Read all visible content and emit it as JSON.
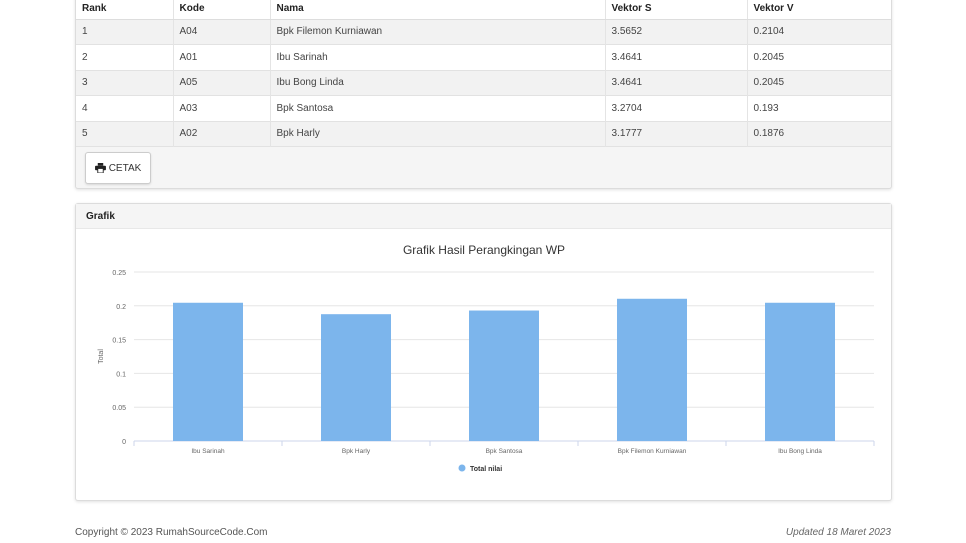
{
  "table": {
    "headers": [
      "Rank",
      "Kode",
      "Nama",
      "Vektor S",
      "Vektor V"
    ],
    "rows": [
      [
        "1",
        "A04",
        "Bpk Filemon Kurniawan",
        "3.5652",
        "0.2104"
      ],
      [
        "2",
        "A01",
        "Ibu Sarinah",
        "3.4641",
        "0.2045"
      ],
      [
        "3",
        "A05",
        "Ibu Bong Linda",
        "3.4641",
        "0.2045"
      ],
      [
        "4",
        "A03",
        "Bpk Santosa",
        "3.2704",
        "0.193"
      ],
      [
        "5",
        "A02",
        "Bpk Harly",
        "3.1777",
        "0.1876"
      ]
    ]
  },
  "print_button": {
    "label": "CETAK",
    "icon": "print-icon"
  },
  "chart_card": {
    "header": "Grafik"
  },
  "chart_data": {
    "type": "bar",
    "title": "Grafik Hasil Perangkingan WP",
    "xlabel": "",
    "ylabel": "Total",
    "categories": [
      "Ibu Sarinah",
      "Bpk Harly",
      "Bpk Santosa",
      "Bpk Filemon Kurniawan",
      "Ibu Bong Linda"
    ],
    "series": [
      {
        "name": "Total nilai",
        "values": [
          0.2045,
          0.1876,
          0.193,
          0.2104,
          0.2045
        ]
      }
    ],
    "yticks": [
      "0",
      "0.05",
      "0.1",
      "0.15",
      "0.2",
      "0.25"
    ],
    "ylim": [
      0,
      0.25
    ],
    "grid": true,
    "legend": "bottom-center",
    "bar_color": "#7cb5ec"
  },
  "footer": {
    "copyright": "Copyright © 2023 RumahSourceCode.Com",
    "updated": "Updated 18 Maret 2023"
  }
}
